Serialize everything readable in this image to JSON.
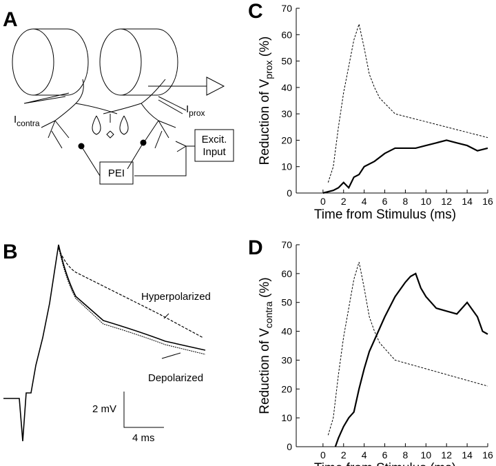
{
  "panels": {
    "A": {
      "label": "A",
      "i_contra": "I",
      "i_contra_sub": "contra",
      "i_prox": "I",
      "i_prox_sub": "prox",
      "pei": "PEI",
      "excit_1": "Excit.",
      "excit_2": "Input"
    },
    "B": {
      "label": "B",
      "hyper": "Hyperpolarized",
      "depol": "Depolarized",
      "scale_v": "2 mV",
      "scale_t": "4 ms"
    }
  },
  "chart_data": [
    {
      "type": "line",
      "panel": "C",
      "ylabel": "Reduction of V",
      "ylabel_sub": "prox",
      "ylabel_unit": "(%)",
      "xlabel": "Time from Stimulus (ms)",
      "xlim": [
        -2.6,
        16
      ],
      "xticks": [
        0,
        2,
        4,
        6,
        8,
        10,
        12,
        14,
        16
      ],
      "ylim": [
        0,
        70
      ],
      "yticks": [
        0,
        10,
        20,
        30,
        40,
        50,
        60,
        70
      ],
      "series": [
        {
          "color": "#000000",
          "dashed": true,
          "x": [
            0.5,
            1,
            1.5,
            2,
            2.5,
            3,
            3.5,
            4,
            4.5,
            5,
            5.5,
            6,
            7,
            8,
            9,
            10,
            11,
            12,
            13,
            14,
            15,
            16
          ],
          "values": [
            4,
            10,
            25,
            38,
            48,
            58,
            64,
            55,
            45,
            40,
            36,
            34,
            30,
            29,
            28,
            27,
            26,
            25,
            24,
            23,
            22,
            21
          ]
        },
        {
          "color": "#000000",
          "dashed": false,
          "x": [
            0,
            1,
            1.5,
            2,
            2.5,
            3,
            3.5,
            4,
            5,
            6,
            7,
            8,
            9,
            10,
            11,
            12,
            13,
            14,
            15,
            16
          ],
          "values": [
            0,
            1,
            2,
            4,
            2,
            6,
            7,
            10,
            12,
            15,
            17,
            17,
            17,
            18,
            19,
            20,
            19,
            18,
            16,
            17
          ]
        }
      ]
    },
    {
      "type": "line",
      "panel": "D",
      "ylabel": "Reduction of V",
      "ylabel_sub": "contra",
      "ylabel_unit": "(%)",
      "xlabel": "Time from Stimulus (ms)",
      "xlim": [
        -2.6,
        16
      ],
      "xticks": [
        0,
        2,
        4,
        6,
        8,
        10,
        12,
        14,
        16
      ],
      "ylim": [
        0,
        70
      ],
      "yticks": [
        0,
        10,
        20,
        30,
        40,
        50,
        60,
        70
      ],
      "series": [
        {
          "color": "#000000",
          "dashed": true,
          "x": [
            0.5,
            1,
            1.5,
            2,
            2.5,
            3,
            3.5,
            4,
            4.5,
            5,
            5.5,
            6,
            7,
            8,
            9,
            10,
            11,
            12,
            13,
            14,
            15,
            16
          ],
          "values": [
            4,
            10,
            25,
            38,
            48,
            58,
            64,
            55,
            45,
            40,
            36,
            34,
            30,
            29,
            28,
            27,
            26,
            25,
            24,
            23,
            22,
            21
          ]
        },
        {
          "color": "#000000",
          "dashed": false,
          "x": [
            1.2,
            1.5,
            2,
            2.5,
            3,
            3.5,
            4,
            4.5,
            5,
            6,
            7,
            8,
            8.5,
            9,
            9.5,
            10,
            11,
            12,
            13,
            14,
            15,
            15.5,
            16
          ],
          "values": [
            0,
            3,
            7,
            10,
            12,
            20,
            27,
            33,
            37,
            45,
            52,
            57,
            59,
            60,
            55,
            52,
            48,
            47,
            46,
            50,
            45,
            40,
            39
          ]
        }
      ]
    }
  ]
}
